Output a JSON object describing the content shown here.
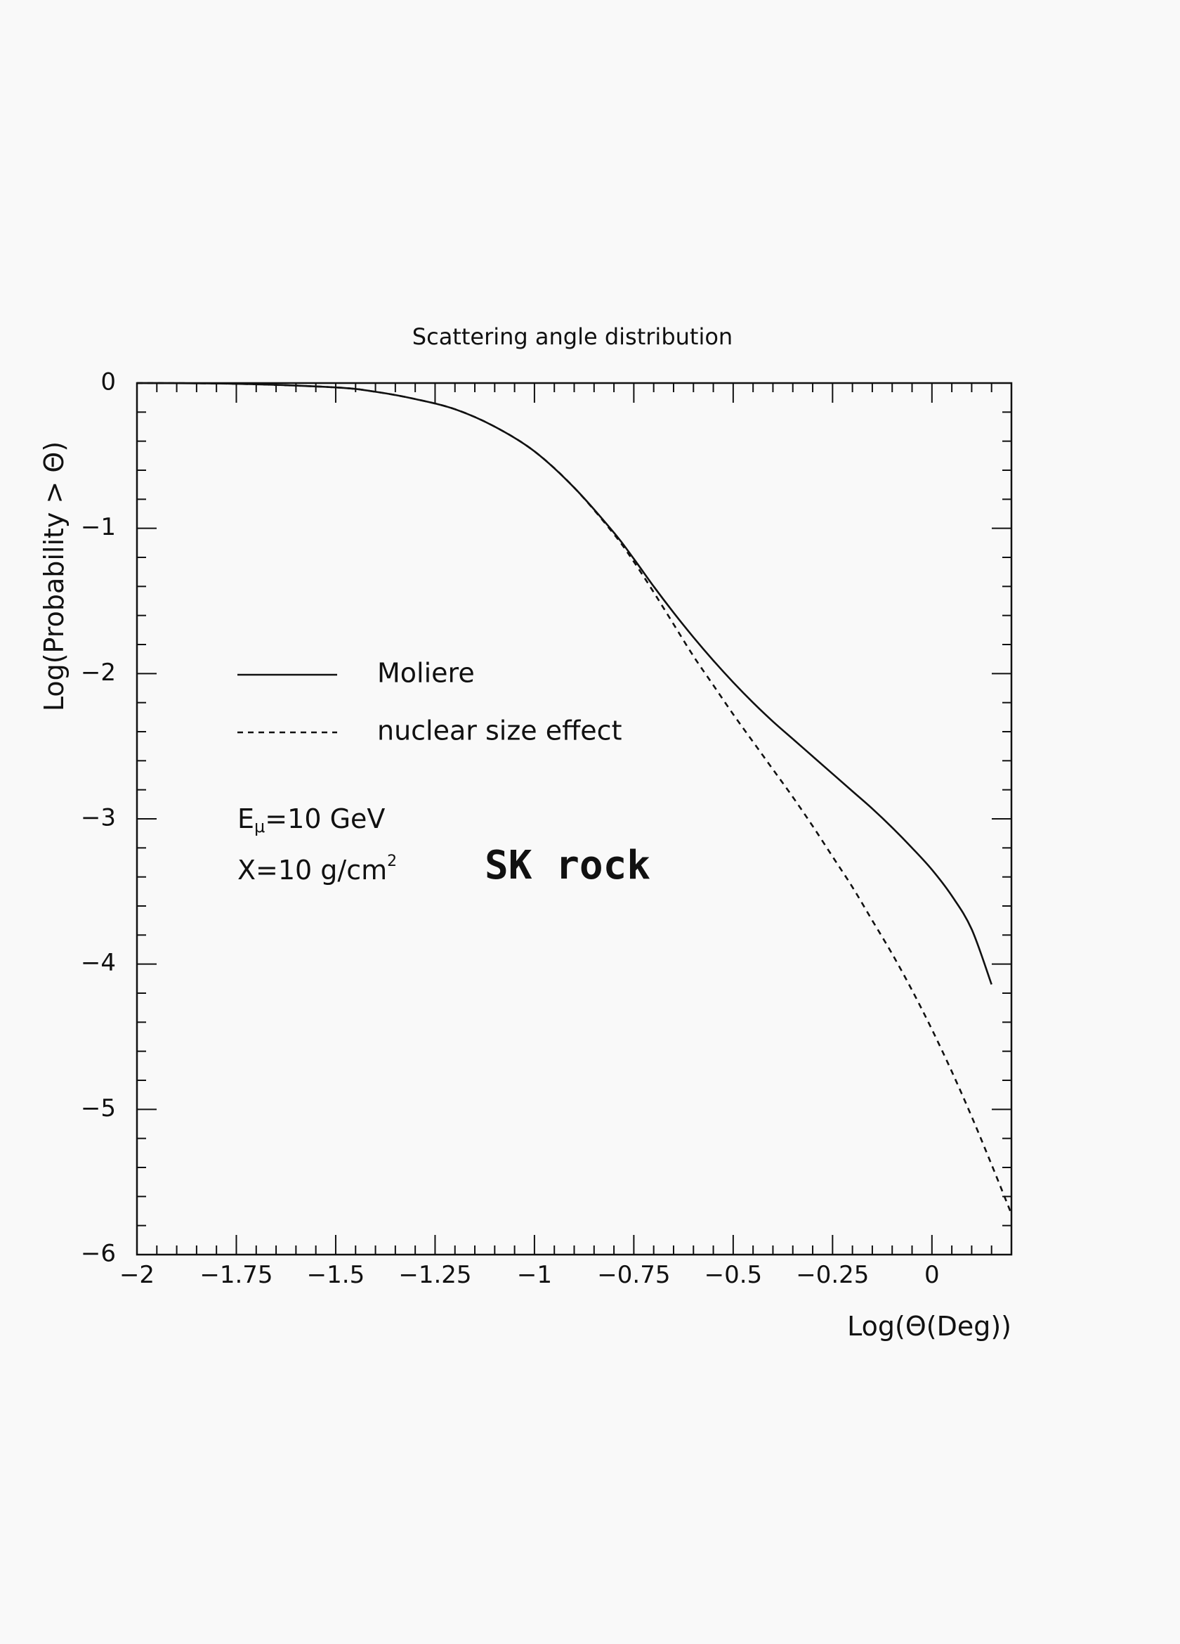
{
  "chart_data": {
    "type": "line",
    "title": "Scattering angle distribution",
    "xlabel": "Log(Θ(Deg))",
    "ylabel": "Log(Probability > Θ)",
    "xlim": [
      -2,
      0.2
    ],
    "ylim": [
      -6,
      0
    ],
    "xticks": [
      -2,
      -1.75,
      -1.5,
      -1.25,
      -1,
      -0.75,
      -0.5,
      -0.25,
      0
    ],
    "xtick_labels": [
      "−2",
      "−1.75",
      "−1.5",
      "−1.25",
      "−1",
      "−0.75",
      "−0.5",
      "−0.25",
      "0"
    ],
    "yticks": [
      0,
      -1,
      -2,
      -3,
      -4,
      -5,
      -6
    ],
    "ytick_labels": [
      "0",
      "−1",
      "−2",
      "−3",
      "−4",
      "−5",
      "−6"
    ],
    "grid": false,
    "legend_position": "left, mid-height inside plot",
    "series": [
      {
        "name": "Moliere",
        "style": "solid",
        "x": [
          -2.0,
          -1.75,
          -1.5,
          -1.4,
          -1.3,
          -1.2,
          -1.1,
          -1.0,
          -0.9,
          -0.8,
          -0.75,
          -0.7,
          -0.65,
          -0.6,
          -0.55,
          -0.5,
          -0.45,
          -0.4,
          -0.35,
          -0.3,
          -0.25,
          -0.2,
          -0.15,
          -0.1,
          -0.05,
          0.0,
          0.05,
          0.1,
          0.15
        ],
        "y": [
          0.0,
          -0.005,
          -0.03,
          -0.06,
          -0.11,
          -0.18,
          -0.3,
          -0.47,
          -0.72,
          -1.03,
          -1.21,
          -1.4,
          -1.58,
          -1.75,
          -1.91,
          -2.06,
          -2.2,
          -2.33,
          -2.45,
          -2.57,
          -2.69,
          -2.81,
          -2.93,
          -3.06,
          -3.2,
          -3.35,
          -3.53,
          -3.76,
          -4.14
        ]
      },
      {
        "name": "nuclear size effect",
        "style": "dashed",
        "x": [
          -2.0,
          -1.75,
          -1.5,
          -1.4,
          -1.3,
          -1.2,
          -1.1,
          -1.0,
          -0.9,
          -0.8,
          -0.75,
          -0.7,
          -0.65,
          -0.6,
          -0.55,
          -0.5,
          -0.45,
          -0.4,
          -0.35,
          -0.3,
          -0.25,
          -0.2,
          -0.15,
          -0.1,
          -0.05,
          0.0,
          0.05,
          0.1,
          0.15,
          0.2
        ],
        "y": [
          0.0,
          -0.005,
          -0.03,
          -0.06,
          -0.11,
          -0.18,
          -0.3,
          -0.47,
          -0.72,
          -1.04,
          -1.23,
          -1.44,
          -1.66,
          -1.88,
          -2.08,
          -2.28,
          -2.47,
          -2.66,
          -2.85,
          -3.05,
          -3.26,
          -3.47,
          -3.7,
          -3.93,
          -4.18,
          -4.45,
          -4.74,
          -5.05,
          -5.38,
          -5.72
        ]
      }
    ],
    "annotations": [
      "Eμ=10 GeV",
      "X=10 g/cm²",
      "SK rock"
    ]
  },
  "legend": {
    "items": [
      {
        "label": "Moliere",
        "style": "solid"
      },
      {
        "label": "nuclear size effect",
        "style": "dashed"
      }
    ]
  },
  "notes": {
    "energy_prefix": "E",
    "energy_sub": "μ",
    "energy_value": "=10 GeV",
    "thickness_prefix": "X=10 g/cm",
    "thickness_sup": "2",
    "handwritten": "SK rock"
  },
  "colors": {
    "line": "#111111",
    "background": "#f9f9f9"
  }
}
